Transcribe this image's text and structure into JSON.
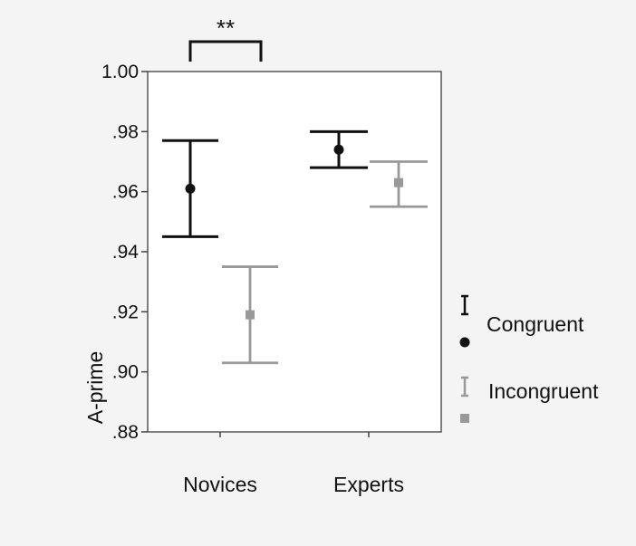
{
  "chart_data": {
    "type": "errorbar",
    "title": "",
    "xlabel": "",
    "ylabel": "A-prime",
    "ylim": [
      0.88,
      1.0
    ],
    "yticks": [
      1.0,
      0.98,
      0.96,
      0.94,
      0.92,
      0.9,
      0.88
    ],
    "ytick_labels": [
      "1.00",
      ".98",
      ".96",
      ".94",
      ".92",
      ".90",
      ".88"
    ],
    "categories": [
      "Novices",
      "Experts"
    ],
    "series": [
      {
        "name": "Congruent",
        "color": "#111111",
        "marker": "circle",
        "points": [
          {
            "category": "Novices",
            "mean": 0.961,
            "lower": 0.945,
            "upper": 0.977
          },
          {
            "category": "Experts",
            "mean": 0.974,
            "lower": 0.968,
            "upper": 0.98
          }
        ]
      },
      {
        "name": "Incongruent",
        "color": "#999999",
        "marker": "square",
        "points": [
          {
            "category": "Novices",
            "mean": 0.919,
            "lower": 0.903,
            "upper": 0.935
          },
          {
            "category": "Experts",
            "mean": 0.963,
            "lower": 0.955,
            "upper": 0.97
          }
        ]
      }
    ],
    "annotations": [
      {
        "text": "**",
        "category": "Novices"
      }
    ],
    "grid": false,
    "legend_position": "right"
  }
}
